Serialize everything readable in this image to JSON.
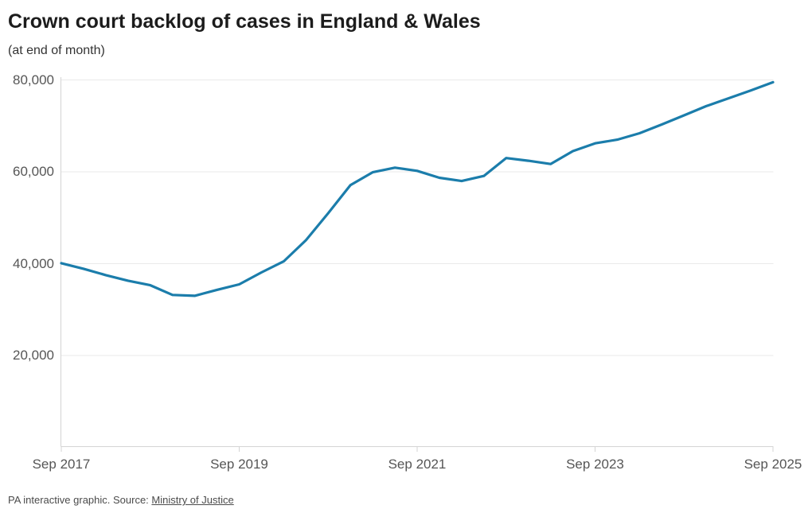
{
  "header": {
    "title": "Crown court backlog of cases in England & Wales",
    "subtitle": "(at end of month)"
  },
  "footer": {
    "credit_prefix": "PA interactive graphic. Source: ",
    "source_link_label": "Ministry of Justice"
  },
  "chart_data": {
    "type": "line",
    "title": "Crown court backlog of cases in England & Wales",
    "subtitle": "(at end of month)",
    "grid": "horizontal-only",
    "legend": "none",
    "line_color": "#1b7dab",
    "axis_color": "#d4d4d4",
    "gridline_color": "#e9e9e9",
    "ylim": [
      0,
      82000
    ],
    "y_axis": {
      "ticks": [
        {
          "label": "80,000",
          "value": 80000
        },
        {
          "label": "60,000",
          "value": 60000
        },
        {
          "label": "40,000",
          "value": 40000
        },
        {
          "label": "20,000",
          "value": 20000
        }
      ]
    },
    "x_axis": {
      "start": "Sep 2017",
      "end": "Sep 2025",
      "ticks": [
        {
          "label": "Sep 2017",
          "month": 0
        },
        {
          "label": "Sep 2019",
          "month": 24
        },
        {
          "label": "Sep 2021",
          "month": 48
        },
        {
          "label": "Sep 2023",
          "month": 72
        },
        {
          "label": "Sep 2025",
          "month": 96
        }
      ]
    },
    "series": [
      {
        "color": "#1b7dab",
        "points": [
          {
            "date": "Sep 2017",
            "value": 40100
          },
          {
            "date": "Dec 2017",
            "value": 38900
          },
          {
            "date": "Mar 2018",
            "value": 37500
          },
          {
            "date": "Jun 2018",
            "value": 36300
          },
          {
            "date": "Sep 2018",
            "value": 35300
          },
          {
            "date": "Dec 2018",
            "value": 33200
          },
          {
            "date": "Mar 2019",
            "value": 33000
          },
          {
            "date": "Jun 2019",
            "value": 34300
          },
          {
            "date": "Sep 2019",
            "value": 35500
          },
          {
            "date": "Dec 2019",
            "value": 38100
          },
          {
            "date": "Mar 2020",
            "value": 40500
          },
          {
            "date": "Jun 2020",
            "value": 45100
          },
          {
            "date": "Sep 2020",
            "value": 51000
          },
          {
            "date": "Dec 2020",
            "value": 57100
          },
          {
            "date": "Mar 2021",
            "value": 59900
          },
          {
            "date": "Jun 2021",
            "value": 60900
          },
          {
            "date": "Sep 2021",
            "value": 60200
          },
          {
            "date": "Dec 2021",
            "value": 58700
          },
          {
            "date": "Mar 2022",
            "value": 58000
          },
          {
            "date": "Jun 2022",
            "value": 59100
          },
          {
            "date": "Sep 2022",
            "value": 63000
          },
          {
            "date": "Dec 2022",
            "value": 62400
          },
          {
            "date": "Mar 2023",
            "value": 61700
          },
          {
            "date": "Jun 2023",
            "value": 64500
          },
          {
            "date": "Sep 2023",
            "value": 66200
          },
          {
            "date": "Dec 2023",
            "value": 67000
          },
          {
            "date": "Mar 2024",
            "value": 68400
          },
          {
            "date": "Jun 2024",
            "value": 70300
          },
          {
            "date": "Sep 2024",
            "value": 72300
          },
          {
            "date": "Dec 2024",
            "value": 74300
          },
          {
            "date": "Mar 2025",
            "value": 76000
          },
          {
            "date": "Jun 2025",
            "value": 77700
          },
          {
            "date": "Sep 2025",
            "value": 79500
          }
        ]
      }
    ]
  }
}
